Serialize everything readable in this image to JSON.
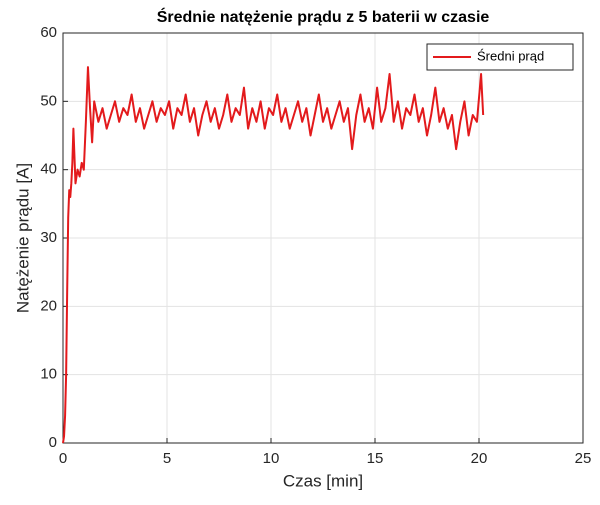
{
  "chart_data": {
    "type": "line",
    "title": "Średnie natężenie prądu z 5 baterii w czasie",
    "x_label": "Czas [min]",
    "y_label": "Natężenie prądu [A]",
    "x": [
      0,
      0.05,
      0.1,
      0.15,
      0.2,
      0.25,
      0.3,
      0.35,
      0.4,
      0.45,
      0.5,
      0.6,
      0.7,
      0.8,
      0.9,
      1,
      1.1,
      1.2,
      1.3,
      1.4,
      1.5,
      1.7,
      1.9,
      2.1,
      2.3,
      2.5,
      2.7,
      2.9,
      3.1,
      3.3,
      3.5,
      3.7,
      3.9,
      4.1,
      4.3,
      4.5,
      4.7,
      4.9,
      5.1,
      5.3,
      5.5,
      5.7,
      5.9,
      6.1,
      6.3,
      6.5,
      6.7,
      6.9,
      7.1,
      7.3,
      7.5,
      7.7,
      7.9,
      8.1,
      8.3,
      8.5,
      8.7,
      8.9,
      9.1,
      9.3,
      9.5,
      9.7,
      9.9,
      10.1,
      10.3,
      10.5,
      10.7,
      10.9,
      11.1,
      11.3,
      11.5,
      11.7,
      11.9,
      12.1,
      12.3,
      12.5,
      12.7,
      12.9,
      13.1,
      13.3,
      13.5,
      13.7,
      13.9,
      14.1,
      14.3,
      14.5,
      14.7,
      14.9,
      15.1,
      15.3,
      15.5,
      15.7,
      15.9,
      16.1,
      16.3,
      16.5,
      16.7,
      16.9,
      17.1,
      17.3,
      17.5,
      17.7,
      17.9,
      18.1,
      18.3,
      18.5,
      18.7,
      18.9,
      19.1,
      19.3,
      19.5,
      19.7,
      19.9,
      20.1,
      20.2
    ],
    "series": [
      {
        "name": "Średni prąd",
        "color": "#e31a1c",
        "values": [
          0,
          1,
          4,
          10,
          22,
          33,
          37,
          36,
          38,
          41,
          46,
          38,
          40,
          39,
          41,
          40,
          47,
          55,
          49,
          44,
          50,
          47,
          49,
          46,
          48,
          50,
          47,
          49,
          48,
          51,
          47,
          49,
          46,
          48,
          50,
          47,
          49,
          48,
          50,
          46,
          49,
          48,
          51,
          47,
          49,
          45,
          48,
          50,
          47,
          49,
          46,
          48,
          51,
          47,
          49,
          48,
          52,
          46,
          49,
          47,
          50,
          46,
          49,
          48,
          51,
          47,
          49,
          46,
          48,
          50,
          47,
          49,
          45,
          48,
          51,
          47,
          49,
          46,
          48,
          50,
          47,
          49,
          43,
          48,
          51,
          47,
          49,
          46,
          52,
          47,
          49,
          54,
          47,
          50,
          46,
          49,
          48,
          51,
          47,
          49,
          45,
          48,
          52,
          47,
          49,
          46,
          48,
          43,
          47,
          50,
          45,
          48,
          47,
          54,
          48
        ]
      }
    ],
    "xlim": [
      0,
      25
    ],
    "xticks": [
      0,
      5,
      10,
      15,
      20,
      25
    ],
    "ylim": [
      0,
      60
    ],
    "yticks": [
      0,
      10,
      20,
      30,
      40,
      50,
      60
    ],
    "grid": true,
    "legend": "top-right"
  }
}
